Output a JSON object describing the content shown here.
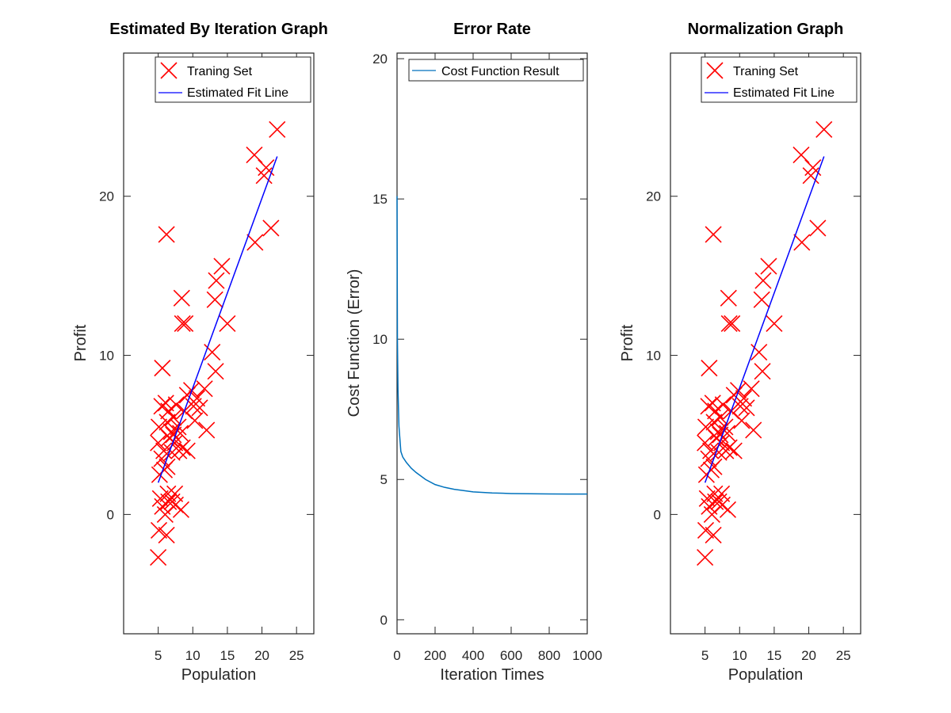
{
  "colors": {
    "marker": "#ff0000",
    "fit_line": "#0000ff",
    "cost_line": "#0072bd",
    "axis": "#262626"
  },
  "chart_data": [
    {
      "type": "scatter",
      "title": "Estimated By Iteration Graph",
      "xlabel": "Population",
      "ylabel": "Profit",
      "xlim": [
        0,
        27.5
      ],
      "ylim": [
        -7.5,
        29
      ],
      "xticks": [
        5,
        10,
        15,
        20,
        25
      ],
      "yticks": [
        0,
        10,
        20
      ],
      "legend": {
        "placement": "top-right",
        "entries": [
          "Traning Set",
          "Estimated Fit Line"
        ]
      },
      "series": [
        {
          "name": "Traning Set",
          "marker": "x",
          "points": [
            [
              5.0,
              -2.7
            ],
            [
              5.1,
              -1.0
            ],
            [
              5.3,
              1.0
            ],
            [
              5.6,
              0.5
            ],
            [
              5.2,
              2.5
            ],
            [
              5.5,
              3.5
            ],
            [
              5.0,
              4.5
            ],
            [
              5.1,
              5.5
            ],
            [
              5.5,
              6.8
            ],
            [
              5.8,
              4.0
            ],
            [
              5.9,
              2.8
            ],
            [
              6.2,
              -1.3
            ],
            [
              6.0,
              0.0
            ],
            [
              6.4,
              1.3
            ],
            [
              6.5,
              0.8
            ],
            [
              6.3,
              3.0
            ],
            [
              6.6,
              4.8
            ],
            [
              6.3,
              5.8
            ],
            [
              6.5,
              6.5
            ],
            [
              6.9,
              5.2
            ],
            [
              6.1,
              7.0
            ],
            [
              5.6,
              9.2
            ],
            [
              6.2,
              17.6
            ],
            [
              7.0,
              3.9
            ],
            [
              7.2,
              6.1
            ],
            [
              7.0,
              0.8
            ],
            [
              7.2,
              5.0
            ],
            [
              7.4,
              4.5
            ],
            [
              7.6,
              6.9
            ],
            [
              7.5,
              0.6
            ],
            [
              7.9,
              5.5
            ],
            [
              7.4,
              1.3
            ],
            [
              8.0,
              4.0
            ],
            [
              8.3,
              0.3
            ],
            [
              8.2,
              5.1
            ],
            [
              8.5,
              4.2
            ],
            [
              8.5,
              12.0
            ],
            [
              8.4,
              13.6
            ],
            [
              8.8,
              6.5
            ],
            [
              9.2,
              4.0
            ],
            [
              9.2,
              7.5
            ],
            [
              8.9,
              12.0
            ],
            [
              9.8,
              7.8
            ],
            [
              10.1,
              6.8
            ],
            [
              10.3,
              5.9
            ],
            [
              10.6,
              7.3
            ],
            [
              11.0,
              6.7
            ],
            [
              11.7,
              7.9
            ],
            [
              12.0,
              5.3
            ],
            [
              12.8,
              10.2
            ],
            [
              13.2,
              13.5
            ],
            [
              13.4,
              14.7
            ],
            [
              13.3,
              9.0
            ],
            [
              14.2,
              15.6
            ],
            [
              15.0,
              12.0
            ],
            [
              18.9,
              22.6
            ],
            [
              19.0,
              17.1
            ],
            [
              20.3,
              21.3
            ],
            [
              20.6,
              21.8
            ],
            [
              21.3,
              18.0
            ],
            [
              22.2,
              24.2
            ]
          ]
        },
        {
          "name": "Estimated Fit Line",
          "type": "line",
          "x": [
            5.0,
            22.2
          ],
          "y": [
            2.0,
            22.5
          ]
        }
      ]
    },
    {
      "type": "line",
      "title": "Error Rate",
      "xlabel": "Iteration Times",
      "ylabel": "Cost Function (Error)",
      "xlim": [
        0,
        1000
      ],
      "ylim": [
        -0.5,
        20.2
      ],
      "xticks": [
        0,
        200,
        400,
        600,
        800,
        1000
      ],
      "yticks": [
        0,
        5,
        10,
        15,
        20
      ],
      "legend": {
        "placement": "top-right",
        "entries": [
          "Cost Function Result"
        ]
      },
      "series": [
        {
          "name": "Cost Function Result",
          "x": [
            0,
            2,
            5,
            10,
            20,
            30,
            50,
            75,
            100,
            150,
            200,
            250,
            300,
            400,
            500,
            600,
            700,
            800,
            900,
            1000
          ],
          "y": [
            15.1,
            10.0,
            8.2,
            6.9,
            6.0,
            5.8,
            5.6,
            5.4,
            5.25,
            5.0,
            4.82,
            4.72,
            4.65,
            4.56,
            4.52,
            4.5,
            4.49,
            4.485,
            4.48,
            4.48
          ]
        }
      ]
    },
    {
      "type": "scatter",
      "title": "Normalization Graph",
      "xlabel": "Population",
      "ylabel": "Profit",
      "xlim": [
        0,
        27.5
      ],
      "ylim": [
        -7.5,
        29
      ],
      "xticks": [
        5,
        10,
        15,
        20,
        25
      ],
      "yticks": [
        0,
        10,
        20
      ],
      "legend": {
        "placement": "top-right",
        "entries": [
          "Traning Set",
          "Estimated Fit Line"
        ]
      },
      "series": [
        {
          "name": "Traning Set",
          "marker": "x",
          "points": [
            [
              5.0,
              -2.7
            ],
            [
              5.1,
              -1.0
            ],
            [
              5.3,
              1.0
            ],
            [
              5.6,
              0.5
            ],
            [
              5.2,
              2.5
            ],
            [
              5.5,
              3.5
            ],
            [
              5.0,
              4.5
            ],
            [
              5.1,
              5.5
            ],
            [
              5.5,
              6.8
            ],
            [
              5.8,
              4.0
            ],
            [
              5.9,
              2.8
            ],
            [
              6.2,
              -1.3
            ],
            [
              6.0,
              0.0
            ],
            [
              6.4,
              1.3
            ],
            [
              6.5,
              0.8
            ],
            [
              6.3,
              3.0
            ],
            [
              6.6,
              4.8
            ],
            [
              6.3,
              5.8
            ],
            [
              6.5,
              6.5
            ],
            [
              6.9,
              5.2
            ],
            [
              6.1,
              7.0
            ],
            [
              5.6,
              9.2
            ],
            [
              6.2,
              17.6
            ],
            [
              7.0,
              3.9
            ],
            [
              7.2,
              6.1
            ],
            [
              7.0,
              0.8
            ],
            [
              7.2,
              5.0
            ],
            [
              7.4,
              4.5
            ],
            [
              7.6,
              6.9
            ],
            [
              7.5,
              0.6
            ],
            [
              7.9,
              5.5
            ],
            [
              7.4,
              1.3
            ],
            [
              8.0,
              4.0
            ],
            [
              8.3,
              0.3
            ],
            [
              8.2,
              5.1
            ],
            [
              8.5,
              4.2
            ],
            [
              8.5,
              12.0
            ],
            [
              8.4,
              13.6
            ],
            [
              8.8,
              6.5
            ],
            [
              9.2,
              4.0
            ],
            [
              9.2,
              7.5
            ],
            [
              8.9,
              12.0
            ],
            [
              9.8,
              7.8
            ],
            [
              10.1,
              6.8
            ],
            [
              10.3,
              5.9
            ],
            [
              10.6,
              7.3
            ],
            [
              11.0,
              6.7
            ],
            [
              11.7,
              7.9
            ],
            [
              12.0,
              5.3
            ],
            [
              12.8,
              10.2
            ],
            [
              13.2,
              13.5
            ],
            [
              13.4,
              14.7
            ],
            [
              13.3,
              9.0
            ],
            [
              14.2,
              15.6
            ],
            [
              15.0,
              12.0
            ],
            [
              18.9,
              22.6
            ],
            [
              19.0,
              17.1
            ],
            [
              20.3,
              21.3
            ],
            [
              20.6,
              21.8
            ],
            [
              21.3,
              18.0
            ],
            [
              22.2,
              24.2
            ]
          ]
        },
        {
          "name": "Estimated Fit Line",
          "type": "line",
          "x": [
            5.0,
            22.2
          ],
          "y": [
            2.0,
            22.5
          ]
        }
      ]
    }
  ]
}
